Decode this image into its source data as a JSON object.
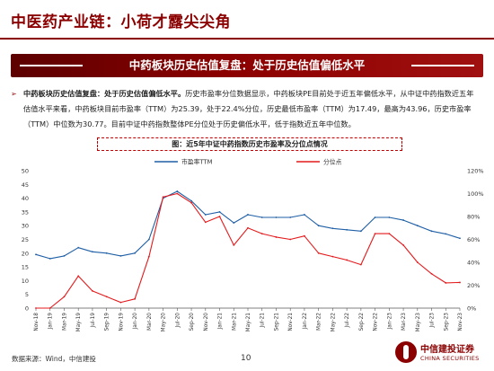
{
  "header": {
    "title": "中医药产业链：小荷才露尖尖角"
  },
  "banner": {
    "text": "中药板块历史估值复盘：处于历史估值偏低水平"
  },
  "paragraph": {
    "bullet": "➢",
    "bold": "中药板块历史估值复盘：处于历史估值偏低水平。",
    "body": "历史市盈率分位数据显示，中药板块PE目前处于近五年偏低水平，从中证中药指数近五年估值水平来看，中药板块目前市盈率（TTM）为25.39，处于22.4%分位，历史最低市盈率（TTM）为17.49，最高为43.96，历史市盈率（TTM）中位数为30.77。目前中证中药指数整体PE分位处于历史偏低水平，低于指数近五年中位数。"
  },
  "footer": {
    "source": "数据来源：Wind，中信建投",
    "page": "10"
  },
  "logo": {
    "cn": "中信建投证券",
    "en": "CHINA SECURITIES"
  },
  "colors": {
    "brand": "#8b0000",
    "pe_line": "#1f5fa6",
    "pct_line": "#e31a1c"
  },
  "chart_data": {
    "type": "line",
    "title": "图：近5年中证中药指数历史市盈率及分位点情况",
    "x": [
      "Nov-18",
      "Jan-19",
      "Mar-19",
      "May-19",
      "Jul-19",
      "Sep-19",
      "Nov-19",
      "Jan-20",
      "Mar-20",
      "May-20",
      "Jul-20",
      "Sep-20",
      "Nov-20",
      "Jan-21",
      "Mar-21",
      "May-21",
      "Jul-21",
      "Sep-21",
      "Nov-21",
      "Jan-22",
      "Mar-22",
      "May-22",
      "Jul-22",
      "Sep-22",
      "Nov-22",
      "Jan-23",
      "Mar-23",
      "May-23",
      "Jul-23",
      "Sep-23",
      "Nov-23"
    ],
    "xlabel": "",
    "ylim_left": [
      0,
      50
    ],
    "yticks_left": [
      "0",
      "5",
      "10",
      "15",
      "20",
      "25",
      "30",
      "35",
      "40",
      "45",
      "50"
    ],
    "ylim_right": [
      0,
      120
    ],
    "yticks_right": [
      "0%",
      "20%",
      "40%",
      "60%",
      "80%",
      "100%",
      "120%"
    ],
    "series": [
      {
        "name": "市盈率TTM",
        "axis": "left",
        "values": [
          19.5,
          18,
          19,
          22,
          20.5,
          20,
          19,
          20,
          25,
          40,
          42.5,
          39,
          34,
          35,
          31,
          34,
          33,
          33,
          33,
          34,
          30,
          29,
          28.5,
          28,
          33,
          33,
          32,
          30,
          28,
          27,
          25.4
        ]
      },
      {
        "name": "分位点",
        "axis": "right",
        "values": [
          0,
          0,
          10,
          28,
          15,
          10,
          5,
          8,
          45,
          97,
          100,
          92,
          75,
          80,
          55,
          70,
          65,
          62,
          60,
          63,
          48,
          45,
          42,
          38,
          65,
          65,
          55,
          40,
          30,
          22,
          22.4
        ]
      }
    ],
    "legend_position": "top",
    "grid": false
  }
}
